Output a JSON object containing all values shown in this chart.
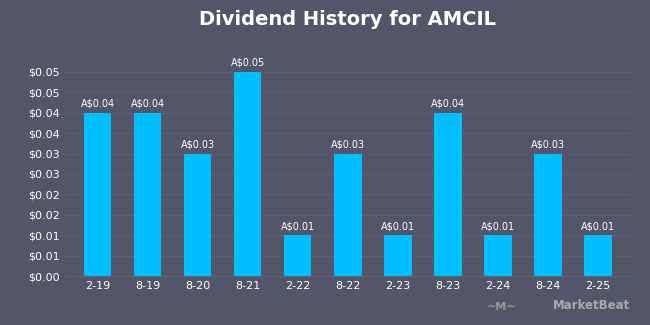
{
  "title": "Dividend History for AMCIL",
  "categories": [
    "2-19",
    "8-19",
    "8-20",
    "8-21",
    "2-22",
    "8-22",
    "2-23",
    "8-23",
    "2-24",
    "8-24",
    "2-25"
  ],
  "values": [
    0.04,
    0.04,
    0.03,
    0.05,
    0.01,
    0.03,
    0.01,
    0.04,
    0.01,
    0.03,
    0.01
  ],
  "labels": [
    "A$0.04",
    "A$0.04",
    "A$0.03",
    "A$0.05",
    "A$0.01",
    "A$0.03",
    "A$0.01",
    "A$0.04",
    "A$0.01",
    "A$0.03",
    "A$0.01"
  ],
  "bar_color": "#00bfff",
  "background_color": "#535669",
  "grid_color": "#5e6176",
  "text_color": "#ffffff",
  "title_fontsize": 14,
  "label_fontsize": 7,
  "tick_fontsize": 8,
  "ylim": [
    0,
    0.058
  ],
  "yticks": [
    0.0,
    0.005,
    0.01,
    0.015,
    0.02,
    0.025,
    0.03,
    0.035,
    0.04,
    0.045,
    0.05
  ],
  "ytick_labels": [
    "$0.00",
    "$0.01",
    "$0.01",
    "$0.02",
    "$0.02",
    "$0.03",
    "$0.03",
    "$0.04",
    "$0.04",
    "$0.05",
    "$0.05"
  ],
  "watermark_text": "MarketBeat"
}
